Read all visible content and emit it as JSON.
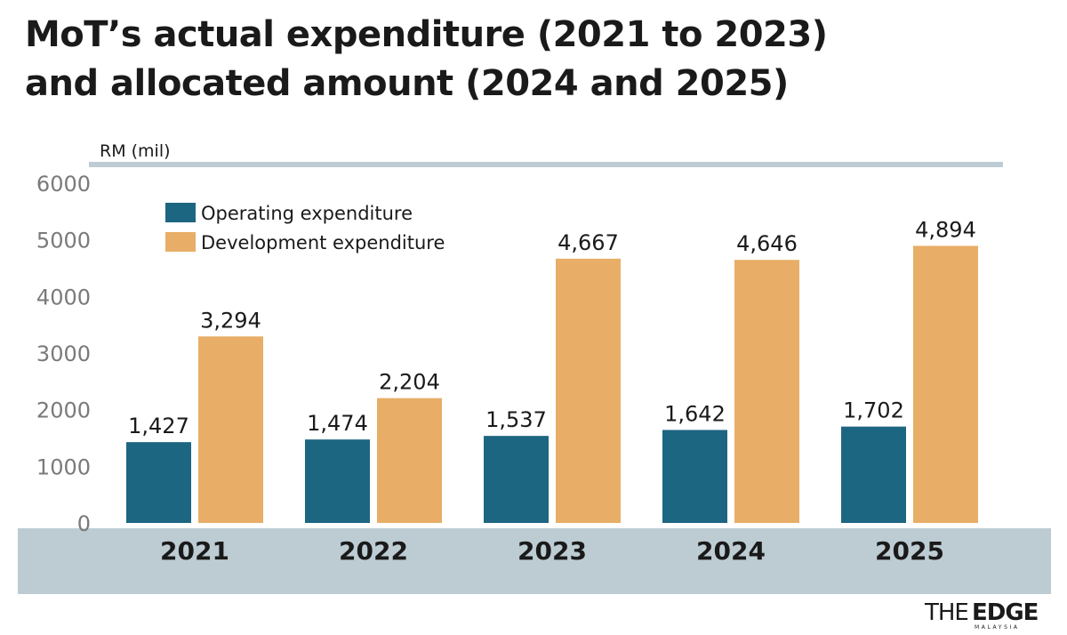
{
  "colors": {
    "operating": "#1d6682",
    "development": "#e8ae67",
    "band": "#bdccd3",
    "top_rule": "#bdccd3"
  },
  "chart_data": {
    "type": "bar",
    "title": "MoT’s actual expenditure (2021 to 2023) and allocated amount (2024 and 2025)",
    "title_lines": [
      "MoT’s actual expenditure (2021 to 2023)",
      "and allocated amount (2024 and 2025)"
    ],
    "unit_label": "RM (mil)",
    "categories": [
      "2021",
      "2022",
      "2023",
      "2024",
      "2025"
    ],
    "series": [
      {
        "name": "Operating expenditure",
        "values": [
          1427,
          1474,
          1537,
          1642,
          1702
        ],
        "value_labels": [
          "1,427",
          "1,474",
          "1,537",
          "1,642",
          "1,702"
        ]
      },
      {
        "name": "Development expenditure",
        "values": [
          3294,
          2204,
          4667,
          4646,
          4894
        ],
        "value_labels": [
          "3,294",
          "2,204",
          "4,667",
          "4,646",
          "4,894"
        ]
      }
    ],
    "yticks": [
      "0",
      "1000",
      "2000",
      "3000",
      "4000",
      "5000",
      "6000"
    ],
    "ylim": [
      0,
      6000
    ],
    "grid": false,
    "legend_position": "top-left"
  },
  "brand": {
    "the": "THE",
    "edge": "EDGE",
    "sub": "MALAYSIA"
  }
}
